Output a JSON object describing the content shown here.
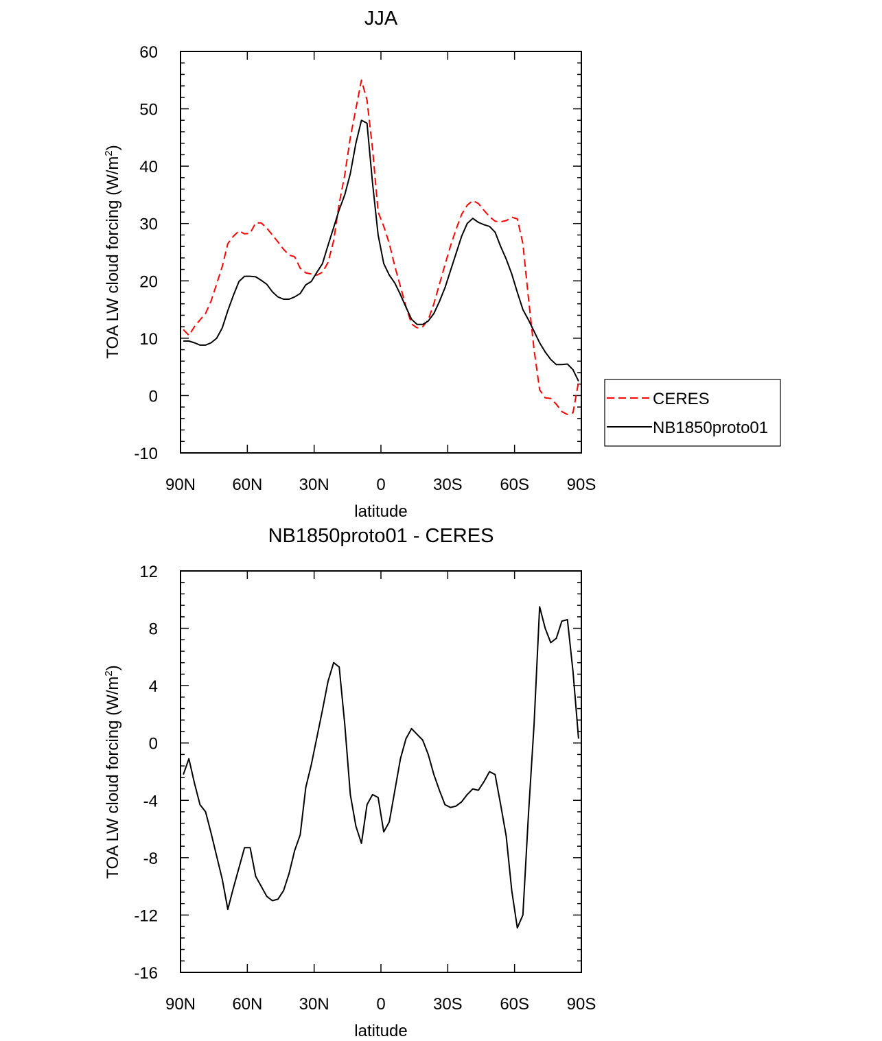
{
  "chart_data": [
    {
      "type": "line",
      "title": "JJA",
      "xlabel": "latitude",
      "ylabel": "TOA LW cloud forcing (W/m",
      "ylabel_sup": "2",
      "ylabel_end": ")",
      "xlim": [
        90,
        -90
      ],
      "ylim": [
        -10,
        60
      ],
      "yticks": [
        -10,
        0,
        10,
        20,
        30,
        40,
        50,
        60
      ],
      "ytick_labels": [
        "-10",
        "0",
        "10",
        "20",
        "30",
        "40",
        "50",
        "60"
      ],
      "xticks": [
        90,
        60,
        30,
        0,
        -30,
        -60,
        -90
      ],
      "xtick_labels": [
        "90N",
        "60N",
        "30N",
        "0",
        "30S",
        "60S",
        "90S"
      ],
      "legend": {
        "placement": "right",
        "entries": [
          "CERES",
          "NB1850proto01"
        ]
      },
      "x_start": 88.75,
      "x_step": -2.5,
      "series": [
        {
          "name": "CERES",
          "color": "#ff0000",
          "dash": true,
          "values": [
            11.5,
            10.5,
            12,
            13.2,
            14.3,
            16.5,
            19.5,
            22.5,
            26.5,
            27.8,
            28.7,
            28.2,
            28.3,
            30.1,
            30.1,
            29.2,
            28,
            26.8,
            25.5,
            24.5,
            24.2,
            22.2,
            21.4,
            21.2,
            21,
            21.5,
            23.2,
            27,
            33.5,
            38.5,
            45,
            50,
            55,
            51.5,
            43,
            32,
            29.5,
            26.5,
            22.5,
            19,
            15.5,
            12.5,
            11.8,
            12,
            13.2,
            16,
            19.4,
            22.8,
            26.1,
            29,
            31.6,
            33.2,
            34,
            33.5,
            32.3,
            31.2,
            30.4,
            30.3,
            30.5,
            31.1,
            30.8,
            26.5,
            17,
            8,
            1,
            -0.4,
            -0.5,
            -1.5,
            -2.8,
            -3.3,
            -3.0,
            2.4
          ]
        },
        {
          "name": "NB1850proto01",
          "color": "#000000",
          "dash": false,
          "values": [
            9.5,
            9.5,
            9.2,
            8.8,
            8.8,
            9.2,
            10,
            11.8,
            14.8,
            17.5,
            19.9,
            20.8,
            20.8,
            20.7,
            20.1,
            19.4,
            18.1,
            17.2,
            16.8,
            16.8,
            17.2,
            17.8,
            19.3,
            19.9,
            21.5,
            23,
            26.2,
            29.3,
            32.4,
            35,
            38.7,
            44,
            48,
            47.5,
            37,
            28,
            23,
            21,
            19.6,
            17.6,
            15.4,
            13.3,
            12.4,
            12.4,
            13,
            14.3,
            16.4,
            18.8,
            21.8,
            24.8,
            27.8,
            30,
            30.9,
            30.2,
            29.8,
            29.5,
            28.5,
            26,
            23.8,
            21.2,
            18,
            15,
            13.2,
            11.2,
            9.2,
            7.6,
            6.3,
            5.4,
            5.4,
            5.5,
            4.5,
            2.5
          ]
        }
      ]
    },
    {
      "type": "line",
      "title": "NB1850proto01 - CERES",
      "xlabel": "latitude",
      "ylabel": "TOA LW cloud forcing (W/m",
      "ylabel_sup": "2",
      "ylabel_end": ")",
      "xlim": [
        90,
        -90
      ],
      "ylim": [
        -16,
        12
      ],
      "yticks": [
        -16,
        -12,
        -8,
        -4,
        0,
        4,
        8,
        12
      ],
      "ytick_labels": [
        "-16",
        "-12",
        "-8",
        "-4",
        "0",
        "4",
        "8",
        "12"
      ],
      "xticks": [
        90,
        60,
        30,
        0,
        -30,
        -60,
        -90
      ],
      "xtick_labels": [
        "90N",
        "60N",
        "30N",
        "0",
        "30S",
        "60S",
        "90S"
      ],
      "x_start": 88.75,
      "x_step": -2.5,
      "series": [
        {
          "name": "NB1850proto01 - CERES",
          "color": "#000000",
          "dash": false,
          "values": [
            -2.2,
            -1.1,
            -2.8,
            -4.3,
            -4.8,
            -6.3,
            -7.9,
            -9.5,
            -11.6,
            -10.1,
            -8.7,
            -7.3,
            -7.3,
            -9.3,
            -10,
            -10.7,
            -11,
            -10.9,
            -10.3,
            -9.1,
            -7.5,
            -6.4,
            -3.1,
            -1.5,
            0.4,
            2.3,
            4.3,
            5.6,
            5.3,
            1.3,
            -3.6,
            -5.8,
            -7,
            -4.3,
            -3.6,
            -3.8,
            -6.2,
            -5.5,
            -3.3,
            -1.1,
            0.3,
            1.0,
            0.6,
            0.2,
            -0.8,
            -2.2,
            -3.3,
            -4.3,
            -4.5,
            -4.4,
            -4.1,
            -3.6,
            -3.2,
            -3.3,
            -2.7,
            -2.0,
            -2.2,
            -4.3,
            -6.5,
            -10.3,
            -12.9,
            -12,
            -5,
            1.3,
            9.5,
            8.0,
            7.0,
            7.3,
            8.5,
            8.6,
            5,
            0.3
          ]
        }
      ]
    }
  ]
}
